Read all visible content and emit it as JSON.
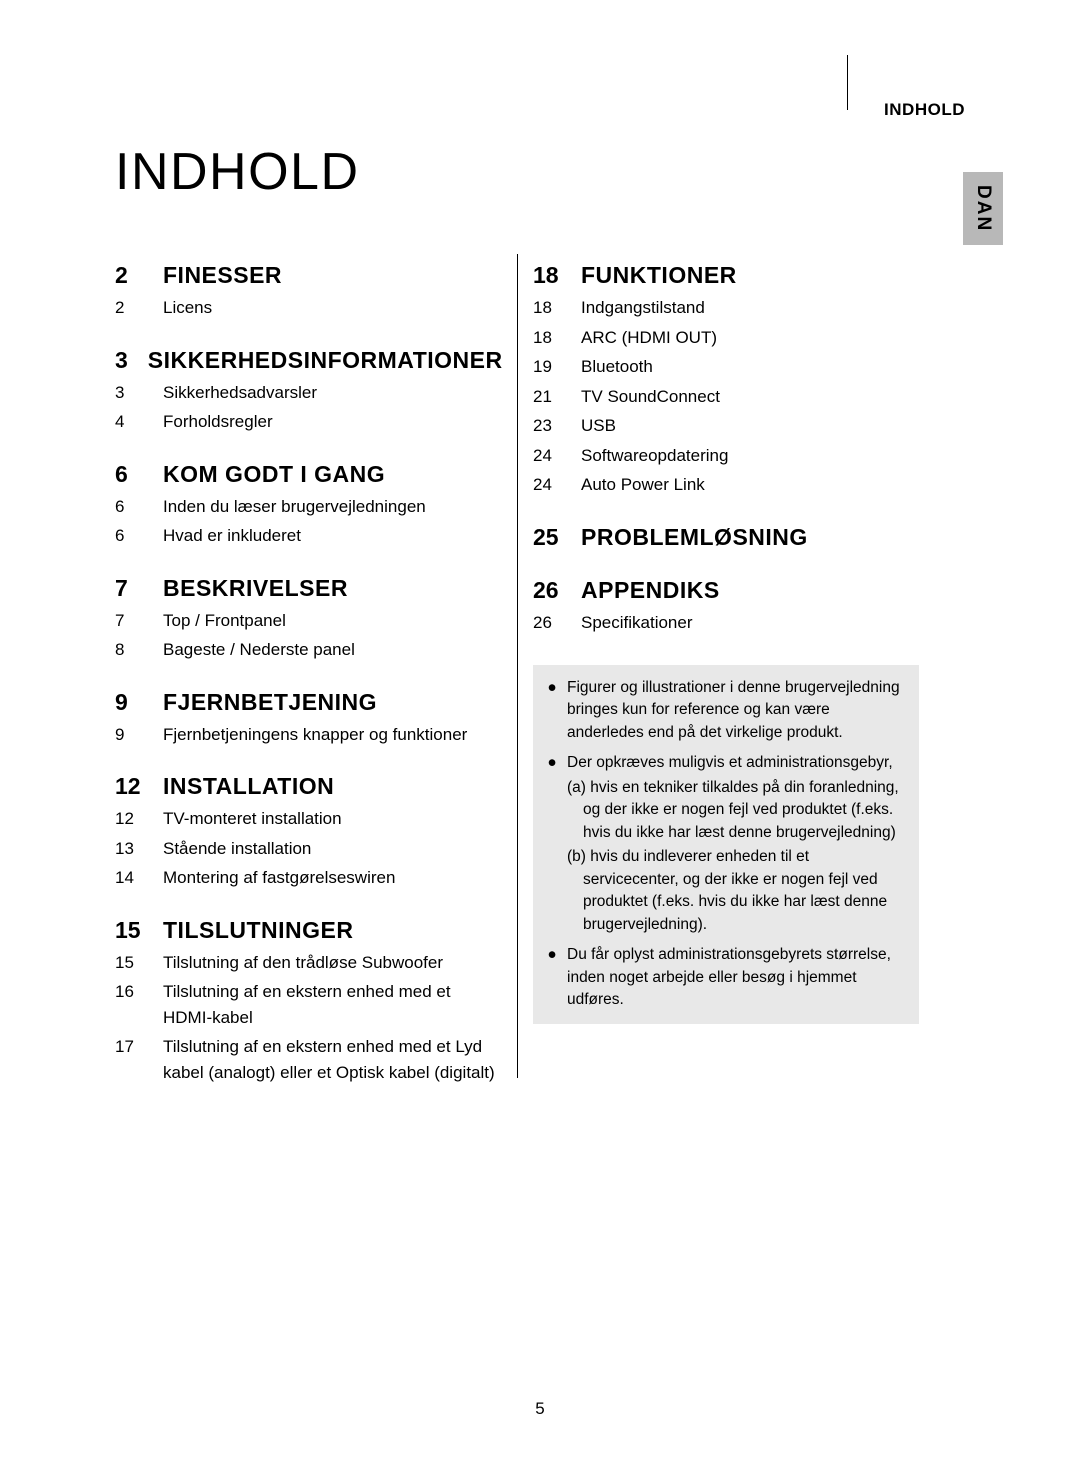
{
  "header": {
    "section_label": "INDHOLD",
    "language": "DAN"
  },
  "title": "INDHOLD",
  "page_number": "5",
  "columns": {
    "left": [
      {
        "type": "section",
        "page": "2",
        "title": "FINESSER"
      },
      {
        "type": "entry",
        "page": "2",
        "text": "Licens"
      },
      {
        "type": "section",
        "page": "3",
        "title": "SIKKERHEDSINFORMATIONER"
      },
      {
        "type": "entry",
        "page": "3",
        "text": "Sikkerhedsadvarsler"
      },
      {
        "type": "entry",
        "page": "4",
        "text": "Forholdsregler"
      },
      {
        "type": "section",
        "page": "6",
        "title": "KOM GODT I GANG"
      },
      {
        "type": "entry",
        "page": "6",
        "text": "Inden du læser brugervejledningen"
      },
      {
        "type": "entry",
        "page": "6",
        "text": "Hvad er inkluderet"
      },
      {
        "type": "section",
        "page": "7",
        "title": "BESKRIVELSER"
      },
      {
        "type": "entry",
        "page": "7",
        "text": "Top / Frontpanel"
      },
      {
        "type": "entry",
        "page": "8",
        "text": "Bageste / Nederste panel"
      },
      {
        "type": "section",
        "page": "9",
        "title": "FJERNBETJENING"
      },
      {
        "type": "entry",
        "page": "9",
        "text": "Fjernbetjeningens knapper og funktioner"
      },
      {
        "type": "section",
        "page": "12",
        "title": "INSTALLATION"
      },
      {
        "type": "entry",
        "page": "12",
        "text": "TV-monteret installation"
      },
      {
        "type": "entry",
        "page": "13",
        "text": "Stående installation"
      },
      {
        "type": "entry",
        "page": "14",
        "text": "Montering af fastgørelseswiren"
      },
      {
        "type": "section",
        "page": "15",
        "title": "TILSLUTNINGER"
      },
      {
        "type": "entry",
        "page": "15",
        "text": "Tilslutning af den trådløse Subwoofer"
      },
      {
        "type": "entry",
        "page": "16",
        "text": "Tilslutning af en ekstern enhed med et HDMI-kabel"
      },
      {
        "type": "entry",
        "page": "17",
        "text": "Tilslutning af en ekstern enhed med et Lyd kabel (analogt) eller et Optisk kabel (digitalt)"
      }
    ],
    "right": [
      {
        "type": "section",
        "page": "18",
        "title": "FUNKTIONER"
      },
      {
        "type": "entry",
        "page": "18",
        "text": "Indgangstilstand"
      },
      {
        "type": "entry",
        "page": "18",
        "text": "ARC (HDMI OUT)"
      },
      {
        "type": "entry",
        "page": "19",
        "text": "Bluetooth"
      },
      {
        "type": "entry",
        "page": "21",
        "text": "TV SoundConnect"
      },
      {
        "type": "entry",
        "page": "23",
        "text": "USB"
      },
      {
        "type": "entry",
        "page": "24",
        "text": "Softwareopdatering"
      },
      {
        "type": "entry",
        "page": "24",
        "text": "Auto Power Link"
      },
      {
        "type": "section",
        "page": "25",
        "title": "PROBLEMLØSNING"
      },
      {
        "type": "section",
        "page": "26",
        "title": "APPENDIKS"
      },
      {
        "type": "entry",
        "page": "26",
        "text": "Specifikationer"
      }
    ]
  },
  "notes": [
    {
      "text": "Figurer og illustrationer i denne brugervejledning bringes kun for reference og kan være anderledes end på det virkelige produkt.",
      "subs": []
    },
    {
      "text": "Der opkræves muligvis et administrationsgebyr,",
      "subs": [
        "(a) hvis en tekniker tilkaldes på din foranledning, og der ikke er nogen fejl ved produktet (f.eks. hvis du ikke har læst denne brugervejledning)",
        "(b) hvis du indleverer enheden til et servicecenter, og der ikke er nogen fejl ved produktet (f.eks. hvis du ikke har læst denne brugervejledning)."
      ]
    },
    {
      "text": "Du får oplyst administrationsgebyrets størrelse, inden noget arbejde eller besøg i hjemmet udføres.",
      "subs": []
    }
  ],
  "colors": {
    "background": "#ffffff",
    "text": "#000000",
    "tab_bg": "#b8b8b8",
    "note_bg": "#e8e8e8"
  }
}
